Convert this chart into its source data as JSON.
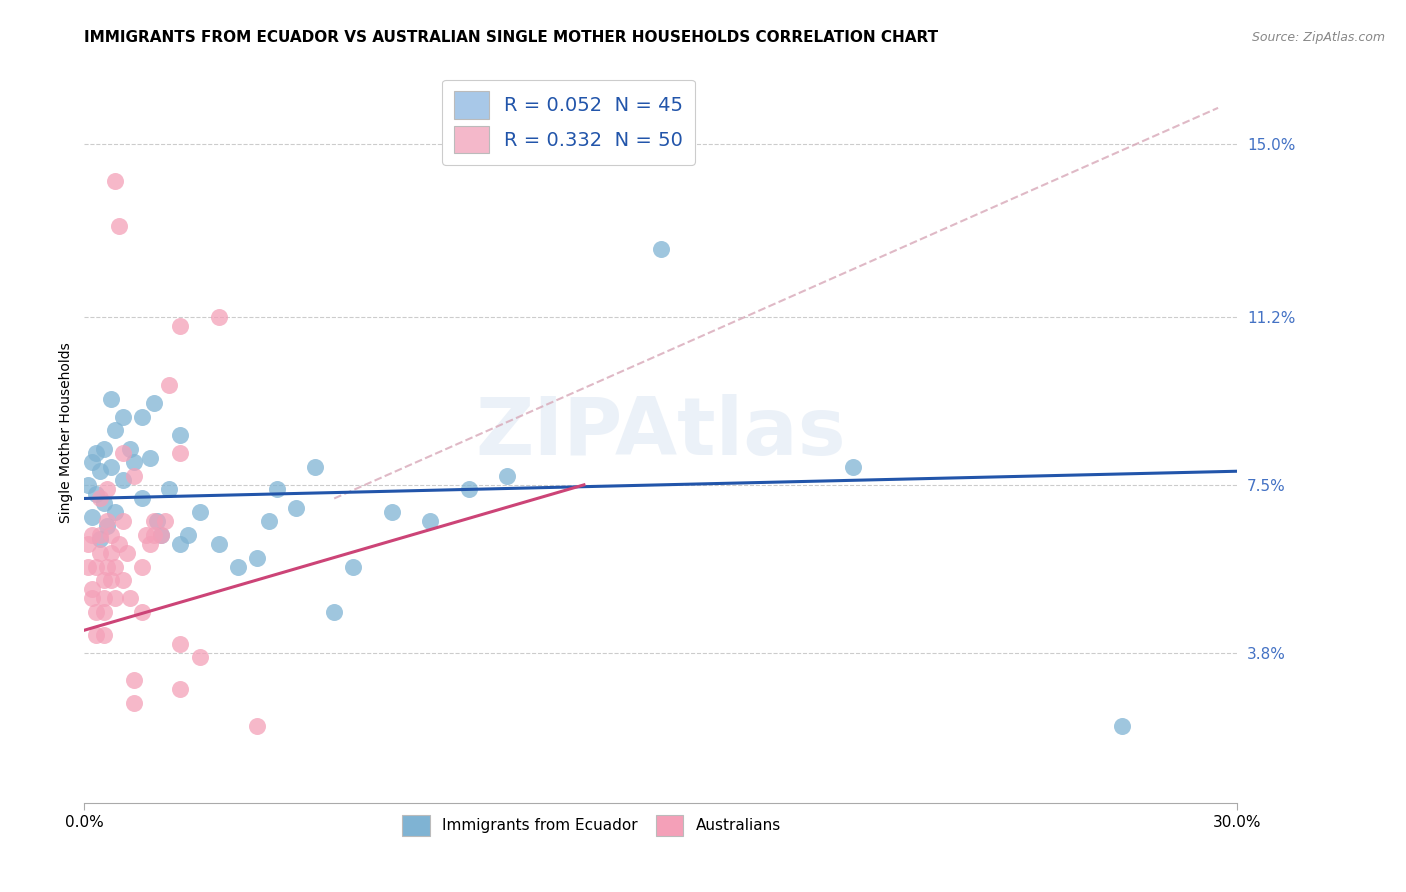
{
  "title": "IMMIGRANTS FROM ECUADOR VS AUSTRALIAN SINGLE MOTHER HOUSEHOLDS CORRELATION CHART",
  "source": "Source: ZipAtlas.com",
  "ylabel": "Single Mother Households",
  "xlim": [
    0.0,
    0.3
  ],
  "ylim": [
    0.005,
    0.168
  ],
  "yticks": [
    0.038,
    0.075,
    0.112,
    0.15
  ],
  "ytick_labels": [
    "3.8%",
    "7.5%",
    "11.2%",
    "15.0%"
  ],
  "xticks": [
    0.0,
    0.3
  ],
  "xtick_labels": [
    "0.0%",
    "30.0%"
  ],
  "watermark": "ZIPAtlas",
  "legend_entries": [
    {
      "label": "R = 0.052  N = 45",
      "color": "#a8c8e8"
    },
    {
      "label": "R = 0.332  N = 50",
      "color": "#f4b8ca"
    }
  ],
  "blue_scatter": [
    [
      0.001,
      0.075
    ],
    [
      0.002,
      0.068
    ],
    [
      0.002,
      0.08
    ],
    [
      0.003,
      0.073
    ],
    [
      0.003,
      0.082
    ],
    [
      0.004,
      0.063
    ],
    [
      0.004,
      0.078
    ],
    [
      0.005,
      0.083
    ],
    [
      0.005,
      0.071
    ],
    [
      0.006,
      0.066
    ],
    [
      0.007,
      0.079
    ],
    [
      0.007,
      0.094
    ],
    [
      0.008,
      0.087
    ],
    [
      0.008,
      0.069
    ],
    [
      0.01,
      0.09
    ],
    [
      0.01,
      0.076
    ],
    [
      0.012,
      0.083
    ],
    [
      0.013,
      0.08
    ],
    [
      0.015,
      0.09
    ],
    [
      0.015,
      0.072
    ],
    [
      0.017,
      0.081
    ],
    [
      0.018,
      0.093
    ],
    [
      0.019,
      0.067
    ],
    [
      0.02,
      0.064
    ],
    [
      0.022,
      0.074
    ],
    [
      0.025,
      0.086
    ],
    [
      0.025,
      0.062
    ],
    [
      0.027,
      0.064
    ],
    [
      0.03,
      0.069
    ],
    [
      0.035,
      0.062
    ],
    [
      0.04,
      0.057
    ],
    [
      0.045,
      0.059
    ],
    [
      0.048,
      0.067
    ],
    [
      0.05,
      0.074
    ],
    [
      0.055,
      0.07
    ],
    [
      0.06,
      0.079
    ],
    [
      0.065,
      0.047
    ],
    [
      0.07,
      0.057
    ],
    [
      0.08,
      0.069
    ],
    [
      0.09,
      0.067
    ],
    [
      0.1,
      0.074
    ],
    [
      0.11,
      0.077
    ],
    [
      0.15,
      0.127
    ],
    [
      0.2,
      0.079
    ],
    [
      0.27,
      0.022
    ]
  ],
  "pink_scatter": [
    [
      0.001,
      0.057
    ],
    [
      0.001,
      0.062
    ],
    [
      0.002,
      0.05
    ],
    [
      0.002,
      0.064
    ],
    [
      0.002,
      0.052
    ],
    [
      0.003,
      0.047
    ],
    [
      0.003,
      0.057
    ],
    [
      0.003,
      0.042
    ],
    [
      0.004,
      0.06
    ],
    [
      0.004,
      0.064
    ],
    [
      0.004,
      0.072
    ],
    [
      0.005,
      0.054
    ],
    [
      0.005,
      0.05
    ],
    [
      0.005,
      0.047
    ],
    [
      0.005,
      0.042
    ],
    [
      0.006,
      0.057
    ],
    [
      0.006,
      0.067
    ],
    [
      0.006,
      0.074
    ],
    [
      0.007,
      0.06
    ],
    [
      0.007,
      0.054
    ],
    [
      0.007,
      0.064
    ],
    [
      0.008,
      0.05
    ],
    [
      0.008,
      0.057
    ],
    [
      0.008,
      0.142
    ],
    [
      0.009,
      0.062
    ],
    [
      0.009,
      0.132
    ],
    [
      0.01,
      0.054
    ],
    [
      0.01,
      0.082
    ],
    [
      0.01,
      0.067
    ],
    [
      0.011,
      0.06
    ],
    [
      0.012,
      0.05
    ],
    [
      0.013,
      0.077
    ],
    [
      0.013,
      0.027
    ],
    [
      0.013,
      0.032
    ],
    [
      0.015,
      0.057
    ],
    [
      0.015,
      0.047
    ],
    [
      0.016,
      0.064
    ],
    [
      0.017,
      0.062
    ],
    [
      0.018,
      0.064
    ],
    [
      0.018,
      0.067
    ],
    [
      0.02,
      0.064
    ],
    [
      0.021,
      0.067
    ],
    [
      0.022,
      0.097
    ],
    [
      0.025,
      0.082
    ],
    [
      0.025,
      0.04
    ],
    [
      0.025,
      0.03
    ],
    [
      0.025,
      0.11
    ],
    [
      0.03,
      0.037
    ],
    [
      0.035,
      0.112
    ],
    [
      0.045,
      0.022
    ]
  ],
  "blue_line": {
    "x": [
      0.0,
      0.3
    ],
    "y": [
      0.072,
      0.078
    ]
  },
  "pink_line": {
    "x": [
      0.0,
      0.13
    ],
    "y": [
      0.043,
      0.075
    ]
  },
  "diagonal_line": {
    "x": [
      0.065,
      0.295
    ],
    "y": [
      0.072,
      0.158
    ]
  },
  "title_fontsize": 11,
  "label_fontsize": 10,
  "tick_fontsize": 11,
  "blue_color": "#7fb3d3",
  "pink_color": "#f4a0b8",
  "blue_line_color": "#2255aa",
  "pink_line_color": "#cc4477",
  "diagonal_color": "#d8a8b8"
}
